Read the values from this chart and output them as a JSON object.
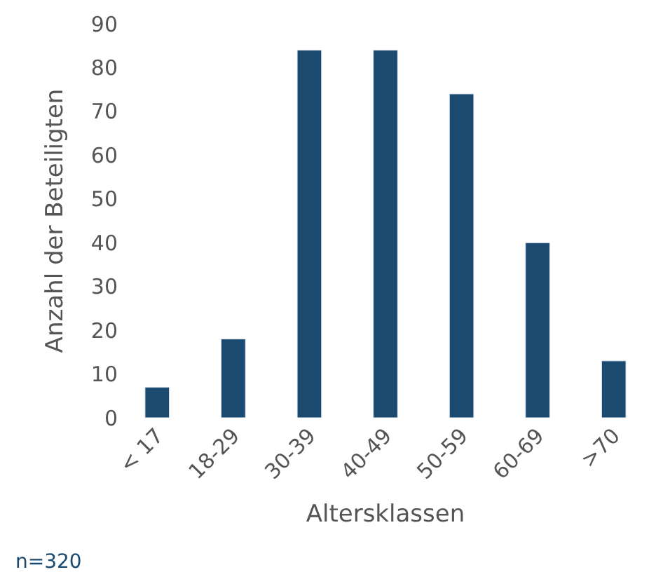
{
  "chart_data": {
    "type": "bar",
    "xlabel": "Altersklassen",
    "ylabel": "Anzahl der Beteiligten",
    "categories": [
      "< 17",
      "18-29",
      "30-39",
      "40-49",
      "50-59",
      "60-69",
      ">70"
    ],
    "values": [
      7,
      18,
      84,
      84,
      74,
      40,
      13
    ],
    "color": "#1a4a70",
    "ylim": [
      0,
      90
    ],
    "yticks": [
      0,
      10,
      20,
      30,
      40,
      50,
      60,
      70,
      80,
      90
    ],
    "legend": false,
    "annotations": [
      "n=320"
    ]
  }
}
